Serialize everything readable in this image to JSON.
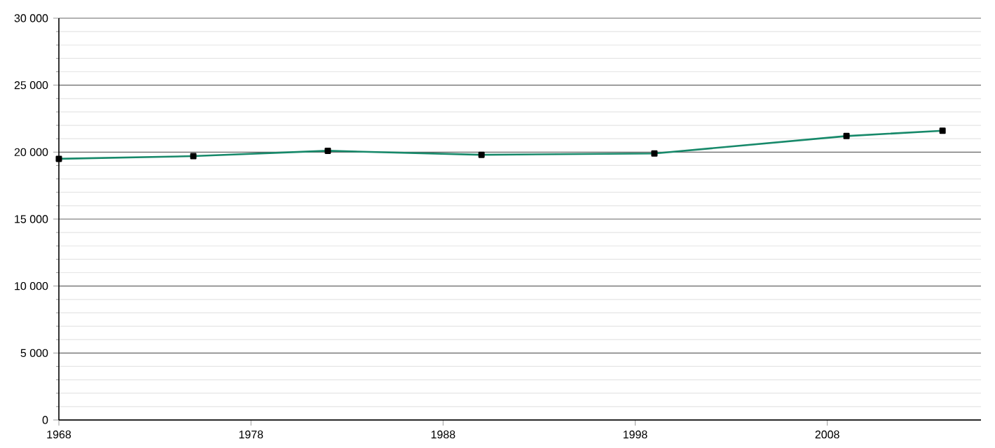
{
  "chart_data": {
    "type": "line",
    "x": [
      1968,
      1975,
      1982,
      1990,
      1999,
      2009,
      2014
    ],
    "series": [
      {
        "color": "#17896a",
        "values": [
          19500,
          19700,
          20100,
          19800,
          19900,
          21200,
          21600
        ]
      }
    ],
    "xlim": [
      1968,
      2016
    ],
    "xticks": [
      1968,
      1978,
      1988,
      1998,
      2008
    ],
    "ylim": [
      0,
      30000
    ],
    "yticks": [
      0,
      {
        "value": 5000,
        "label": "5 000"
      },
      {
        "value": 10000,
        "label": "10 000"
      },
      {
        "value": 15000,
        "label": "15 000"
      },
      {
        "value": 20000,
        "label": "20 000"
      },
      {
        "value": 25000,
        "label": "25 000"
      },
      {
        "value": 30000,
        "label": "30 000"
      }
    ],
    "grid": "y",
    "marker": "square"
  }
}
